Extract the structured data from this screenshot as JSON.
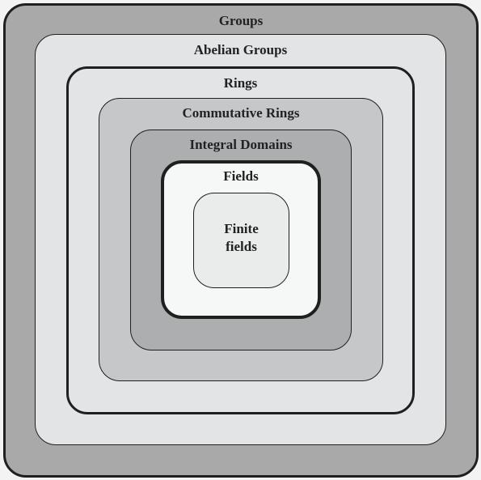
{
  "diagram": {
    "groups_label": "Groups",
    "abelian_groups_label": "Abelian Groups",
    "rings_label": "Rings",
    "commutative_rings_label": "Commutative Rings",
    "integral_domains_label": "Integral Domains",
    "fields_label": "Fields",
    "finite_fields_label": "Finite\nfields"
  },
  "colors": {
    "groups_fill": "#a9a9aa",
    "abelian_groups_fill": "#e3e4e5",
    "rings_fill": "#e3e4e5",
    "commutative_rings_fill": "#c6c7c8",
    "integral_domains_fill": "#adaeaf",
    "fields_fill": "#f6f7f7",
    "finite_fields_fill": "#eaeceb",
    "border": "#1f1f1f",
    "text": "#222222"
  }
}
